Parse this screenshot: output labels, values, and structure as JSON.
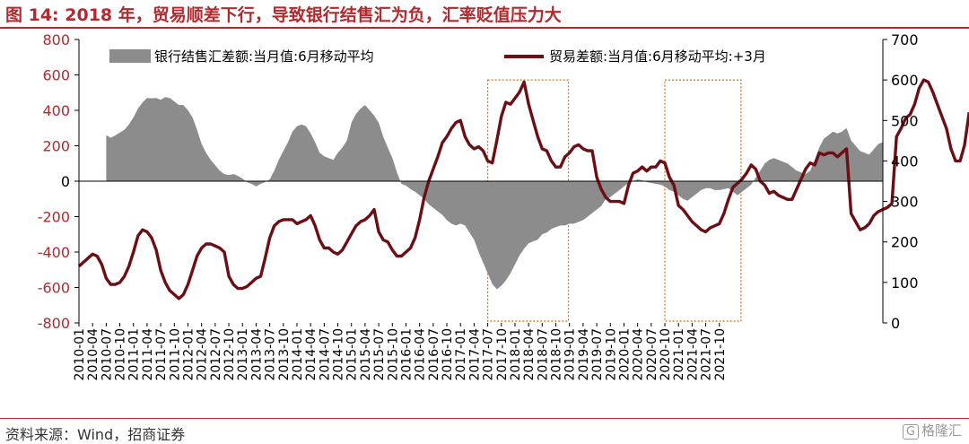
{
  "header": {
    "title": "图 14:  2018 年，贸易顺差下行，导致银行结售汇为负，汇率贬值压力大"
  },
  "footer": {
    "source": "资料来源：Wind，招商证券",
    "watermark_badge": "G",
    "watermark_text": "格隆汇"
  },
  "colors": {
    "area": "#8c8c8c",
    "line": "#6b0f14",
    "accent": "#b2292e",
    "highlight_box": "#e46c0a"
  },
  "chart_data": {
    "type": "area",
    "title": "",
    "xlabel": "",
    "ylabel": "",
    "ylim": [
      -800,
      800
    ],
    "y2lim": [
      0,
      700
    ],
    "grid": false,
    "legend_position": "top",
    "y_ticks": [
      "800",
      "600",
      "400",
      "200",
      "0",
      "-200",
      "-400",
      "-600",
      "-800"
    ],
    "y2_ticks": [
      "700",
      "600",
      "500",
      "400",
      "300",
      "200",
      "100",
      "0"
    ],
    "x_tick_labels": [
      "2010-01",
      "2010-04",
      "2010-07",
      "2010-10",
      "2011-01",
      "2011-04",
      "2011-07",
      "2011-10",
      "2012-01",
      "2012-04",
      "2012-07",
      "2012-10",
      "2013-01",
      "2013-04",
      "2013-07",
      "2013-10",
      "2014-01",
      "2014-04",
      "2014-07",
      "2014-10",
      "2015-01",
      "2015-04",
      "2015-07",
      "2015-10",
      "2016-01",
      "2016-04",
      "2016-07",
      "2016-10",
      "2017-01",
      "2017-04",
      "2017-07",
      "2017-10",
      "2018-01",
      "2018-04",
      "2018-07",
      "2018-10",
      "2019-01",
      "2019-04",
      "2019-07",
      "2019-10",
      "2020-01",
      "2020-04",
      "2020-07",
      "2020-10",
      "2021-01",
      "2021-04",
      "2021-07",
      "2021-10"
    ],
    "series": [
      {
        "name": "银行结售汇差额:当月值:6月移动平均",
        "axis": "left",
        "style": "area",
        "values": [
          null,
          null,
          null,
          null,
          null,
          null,
          260,
          245,
          258,
          275,
          290,
          320,
          360,
          410,
          445,
          470,
          468,
          470,
          460,
          475,
          470,
          450,
          430,
          430,
          400,
          360,
          290,
          210,
          160,
          120,
          90,
          60,
          40,
          35,
          40,
          30,
          15,
          -5,
          -15,
          -30,
          -15,
          -5,
          10,
          60,
          120,
          170,
          220,
          280,
          310,
          320,
          310,
          270,
          220,
          160,
          140,
          130,
          120,
          160,
          190,
          230,
          330,
          380,
          410,
          430,
          400,
          370,
          330,
          250,
          190,
          130,
          50,
          -15,
          -25,
          -45,
          -60,
          -80,
          -100,
          -130,
          -150,
          -170,
          -190,
          -220,
          -240,
          -250,
          -240,
          -250,
          -290,
          -330,
          -400,
          -460,
          -520,
          -580,
          -610,
          -590,
          -560,
          -520,
          -470,
          -420,
          -380,
          -350,
          -340,
          -330,
          -300,
          -290,
          -270,
          -260,
          -250,
          -250,
          -240,
          -240,
          -230,
          -220,
          -200,
          -180,
          -160,
          -140,
          -100,
          -90,
          -70,
          -50,
          -30,
          -10,
          0,
          10,
          5,
          -5,
          -10,
          -15,
          -20,
          -30,
          -50,
          -60,
          -80,
          -100,
          -110,
          -90,
          -70,
          -50,
          -40,
          -40,
          -50,
          -50,
          -45,
          -40,
          -60,
          -80,
          -60,
          -40,
          -20,
          20,
          60,
          100,
          120,
          130,
          120,
          110,
          100,
          80,
          60,
          50,
          40,
          60,
          120,
          190,
          240,
          260,
          280,
          270,
          280,
          300,
          230,
          200,
          170,
          160,
          150,
          180,
          210,
          220
        ]
      },
      {
        "name": "贸易差额:当月值:6月移动平均:+3月",
        "axis": "right",
        "style": "line",
        "values": [
          140,
          150,
          160,
          170,
          165,
          145,
          110,
          95,
          95,
          100,
          115,
          140,
          175,
          215,
          230,
          225,
          210,
          180,
          130,
          100,
          80,
          70,
          60,
          70,
          95,
          130,
          165,
          185,
          195,
          195,
          190,
          185,
          175,
          115,
          95,
          85,
          85,
          90,
          100,
          110,
          115,
          160,
          210,
          240,
          250,
          255,
          255,
          255,
          245,
          250,
          255,
          265,
          240,
          205,
          185,
          185,
          175,
          170,
          180,
          200,
          220,
          240,
          250,
          255,
          265,
          280,
          225,
          205,
          200,
          180,
          165,
          165,
          175,
          185,
          210,
          255,
          310,
          350,
          380,
          410,
          445,
          460,
          480,
          495,
          500,
          460,
          440,
          430,
          435,
          425,
          400,
          395,
          450,
          510,
          545,
          540,
          555,
          570,
          595,
          540,
          500,
          460,
          430,
          425,
          400,
          385,
          385,
          410,
          420,
          435,
          440,
          430,
          425,
          425,
          360,
          330,
          310,
          300,
          300,
          300,
          295,
          340,
          370,
          375,
          385,
          375,
          385,
          385,
          400,
          395,
          360,
          340,
          290,
          280,
          265,
          250,
          240,
          230,
          225,
          235,
          240,
          245,
          270,
          305,
          335,
          345,
          355,
          370,
          390,
          380,
          350,
          340,
          320,
          325,
          315,
          310,
          305,
          305,
          330,
          355,
          380,
          395,
          390,
          420,
          415,
          420,
          420,
          410,
          420,
          430,
          270,
          250,
          230,
          235,
          245,
          265,
          275,
          280,
          285,
          295,
          460,
          480,
          505,
          515,
          540,
          580,
          600,
          595,
          570,
          540,
          510,
          480,
          430,
          400,
          400,
          440,
          520
        ]
      }
    ],
    "highlight_periods": [
      [
        "2017-07",
        "2018-10"
      ],
      [
        "2020-10",
        "2021-12"
      ]
    ]
  }
}
